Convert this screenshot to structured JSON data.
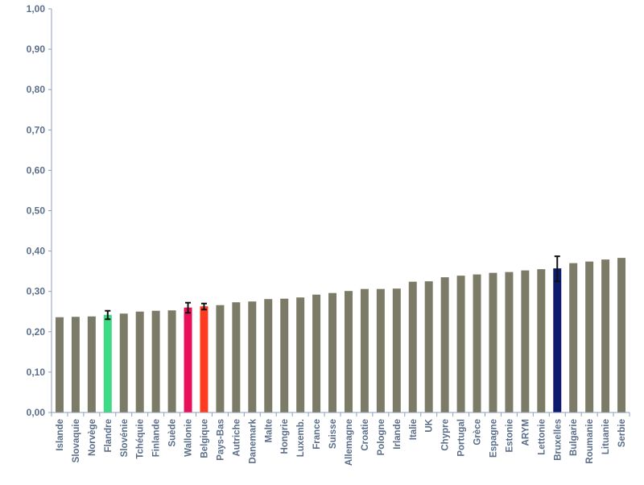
{
  "chart_data": {
    "type": "bar",
    "categories": [
      "Islande",
      "Slovaquie",
      "Norvège",
      "Flandre",
      "Slovénie",
      "Tchéquie",
      "Finlande",
      "Suède",
      "Wallonie",
      "Belgique",
      "Pays-Bas",
      "Autriche",
      "Danemark",
      "Malte",
      "Hongrie",
      "Luxemb.",
      "France",
      "Suisse",
      "Allemagne",
      "Croatie",
      "Pologne",
      "Irlande",
      "Italie",
      "UK",
      "Chypre",
      "Portugal",
      "Grèce",
      "Espagne",
      "Estonie",
      "ARYM",
      "Lettonie",
      "Bruxelles",
      "Bulgarie",
      "Roumanie",
      "Lituanie",
      "Serbie"
    ],
    "values": [
      0.236,
      0.237,
      0.238,
      0.242,
      0.245,
      0.25,
      0.252,
      0.253,
      0.26,
      0.263,
      0.266,
      0.273,
      0.275,
      0.281,
      0.282,
      0.285,
      0.292,
      0.296,
      0.301,
      0.306,
      0.306,
      0.307,
      0.324,
      0.325,
      0.335,
      0.339,
      0.342,
      0.346,
      0.348,
      0.352,
      0.355,
      0.357,
      0.37,
      0.374,
      0.379,
      0.383
    ],
    "error_bars": [
      {
        "category": "Flandre",
        "low": 0.231,
        "high": 0.252
      },
      {
        "category": "Wallonie",
        "low": 0.247,
        "high": 0.272
      },
      {
        "category": "Belgique",
        "low": 0.255,
        "high": 0.27
      },
      {
        "category": "Bruxelles",
        "low": 0.325,
        "high": 0.387
      }
    ],
    "highlight_colors": {
      "Flandre": "#3ddc84",
      "Wallonie": "#e8105a",
      "Belgique": "#ff3b1f",
      "Bruxelles": "#0d1b6e"
    },
    "default_color": "#7b7b68",
    "yticks": [
      "0,00",
      "0,10",
      "0,20",
      "0,30",
      "0,40",
      "0,50",
      "0,60",
      "0,70",
      "0,80",
      "0,90",
      "1,00"
    ],
    "ylim": [
      0,
      1
    ],
    "title": "",
    "xlabel": "",
    "ylabel": "",
    "grid": false,
    "legend": "none"
  }
}
